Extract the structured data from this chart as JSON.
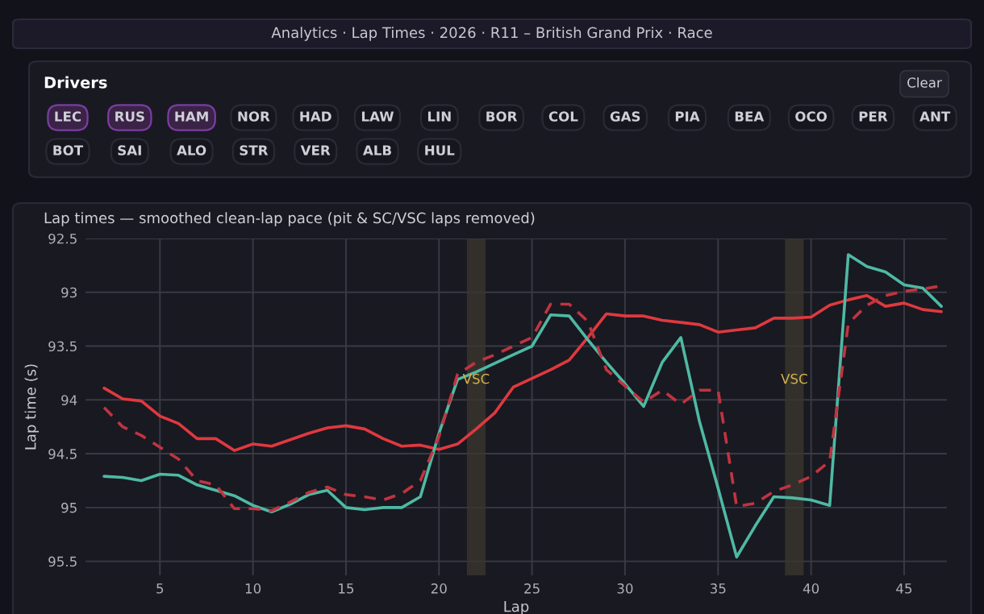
{
  "chart_data": {
    "type": "line",
    "title": "Lap times — smoothed clean-lap pace (pit & SC/VSC laps removed)",
    "xlabel": "Lap",
    "ylabel": "Lap time (s)",
    "x": [
      2,
      3,
      4,
      5,
      6,
      7,
      8,
      9,
      10,
      11,
      12,
      13,
      14,
      15,
      16,
      17,
      18,
      19,
      20,
      21,
      22,
      23,
      24,
      25,
      26,
      27,
      28,
      29,
      30,
      31,
      32,
      33,
      34,
      35,
      36,
      37,
      38,
      39,
      40,
      41,
      42,
      43,
      44,
      45,
      46,
      47
    ],
    "series": [
      {
        "color": "#e0393e",
        "values": [
          93.89,
          93.99,
          94.01,
          94.15,
          94.22,
          94.36,
          94.36,
          94.47,
          94.41,
          94.43,
          94.37,
          94.31,
          94.26,
          94.24,
          94.27,
          94.36,
          94.43,
          94.42,
          94.46,
          94.41,
          94.27,
          94.12,
          93.88,
          93.8,
          93.72,
          93.63,
          93.42,
          93.2,
          93.22,
          93.22,
          93.26,
          93.28,
          93.3,
          93.37,
          93.35,
          93.33,
          93.24,
          93.24,
          93.23,
          93.12,
          93.07,
          93.03,
          93.13,
          93.1,
          93.16,
          93.18
        ]
      },
      {
        "color": "#4fb9a3",
        "values": [
          94.71,
          94.72,
          94.75,
          94.69,
          94.7,
          94.79,
          94.84,
          94.89,
          94.98,
          95.04,
          94.97,
          94.88,
          94.84,
          95.0,
          95.02,
          95.0,
          95.0,
          94.9,
          94.31,
          93.81,
          93.74,
          93.66,
          93.58,
          93.5,
          93.21,
          93.22,
          93.44,
          93.65,
          93.85,
          94.06,
          93.65,
          93.42,
          94.2,
          94.82,
          95.46,
          95.17,
          94.9,
          94.91,
          94.93,
          94.98,
          92.65,
          92.76,
          92.81,
          92.93,
          92.96,
          93.13
        ]
      },
      {
        "color": "#c0343f",
        "line_style": "dashed",
        "values": [
          94.07,
          94.25,
          94.33,
          94.44,
          94.55,
          94.75,
          94.79,
          95.01,
          95.01,
          95.03,
          94.95,
          94.86,
          94.81,
          94.88,
          94.9,
          94.93,
          94.87,
          94.75,
          94.34,
          93.76,
          93.65,
          93.58,
          93.5,
          93.42,
          93.11,
          93.11,
          93.27,
          93.72,
          93.87,
          94.02,
          93.91,
          94.04,
          93.91,
          93.91,
          94.99,
          94.96,
          94.85,
          94.79,
          94.71,
          94.57,
          93.29,
          93.12,
          93.03,
          92.99,
          92.97,
          92.94
        ]
      }
    ],
    "xlim": [
      1,
      47.3
    ],
    "ylim": [
      95.63,
      92.5
    ],
    "xticks": [
      5,
      10,
      15,
      20,
      25,
      30,
      35,
      40,
      45
    ],
    "yticks": [
      92.5,
      93,
      93.5,
      94,
      94.5,
      95,
      95.5
    ],
    "grid": true,
    "bands": [
      {
        "axis": "x",
        "from": 21.5,
        "to": 22.5,
        "label": "VSC",
        "color": "#3a3630"
      },
      {
        "axis": "x",
        "from": 38.6,
        "to": 39.6,
        "label": "VSC",
        "color": "#3a3630"
      }
    ],
    "annotations": [
      "Analytics · Lap Times · 2026 · R11 – British Grand Prix · Race",
      "Drivers",
      "Clear",
      "LEC",
      "RUS",
      "HAM",
      "NOR",
      "HAD",
      "LAW",
      "LIN",
      "BOR",
      "COL",
      "GAS",
      "PIA",
      "BEA",
      "OCO",
      "PER",
      "ANT",
      "BOT",
      "SAI",
      "ALO",
      "STR",
      "VER",
      "ALB",
      "HUL"
    ]
  }
}
